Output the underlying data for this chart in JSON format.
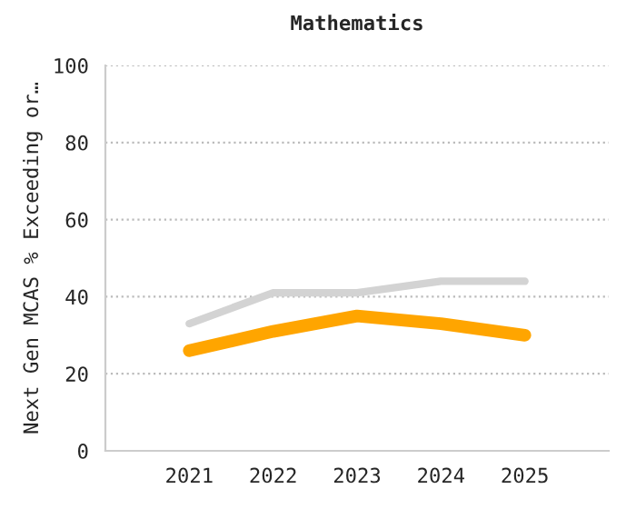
{
  "chart_data": {
    "type": "line",
    "title": "Mathematics",
    "ylabel": "Next Gen MCAS % Exceeding or…",
    "categories": [
      "2021",
      "2022",
      "2023",
      "2024",
      "2025"
    ],
    "series": [
      {
        "color": "#d3d3d3",
        "values": [
          33,
          41,
          41,
          44,
          44
        ]
      },
      {
        "color": "#ffa500",
        "values": [
          26,
          31,
          35,
          33,
          30
        ]
      }
    ],
    "ylim": [
      0,
      100
    ],
    "yticks": [
      0,
      20,
      40,
      60,
      80,
      100
    ],
    "grid": "y",
    "legend": false,
    "marker": "none",
    "line_style": "solid"
  }
}
